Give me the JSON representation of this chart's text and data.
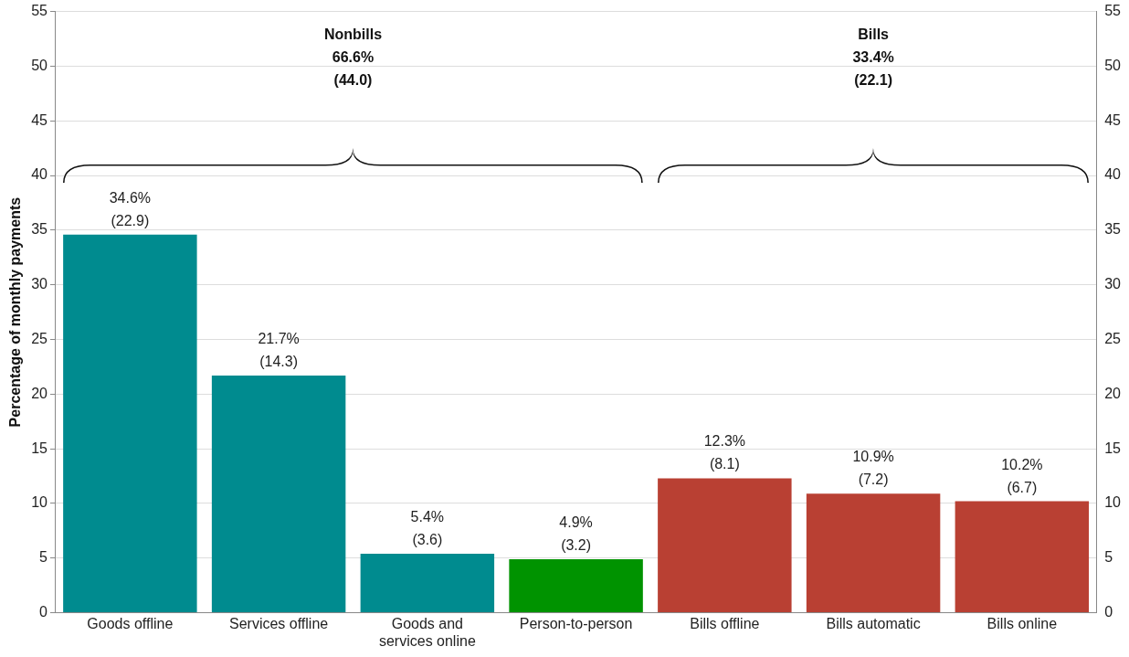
{
  "chart_data": {
    "type": "bar",
    "ylabel": "Percentage of monthly payments",
    "categories": [
      "Goods offline",
      "Services offline",
      "Goods and services online",
      "Person-to-person",
      "Bills offline",
      "Bills automatic",
      "Bills online"
    ],
    "values": [
      34.6,
      21.7,
      5.4,
      4.9,
      12.3,
      10.9,
      10.2
    ],
    "colors": [
      "#008b8f",
      "#008b8f",
      "#008b8f",
      "#009300",
      "#b94033",
      "#b94033",
      "#b94033"
    ],
    "value_labels": [
      "34.6%\n(22.9)",
      "21.7%\n(14.3)",
      "5.4%\n(3.6)",
      "4.9%\n(3.2)",
      "12.3%\n(8.1)",
      "10.9%\n(7.2)",
      "10.2%\n(6.7)"
    ],
    "ylim": [
      0,
      55
    ],
    "yticks": [
      0,
      5,
      10,
      15,
      20,
      25,
      30,
      35,
      40,
      45,
      50,
      55
    ],
    "y2lim": [
      0,
      55
    ],
    "y2ticks": [
      0,
      5,
      10,
      15,
      20,
      25,
      30,
      35,
      40,
      45,
      50,
      55
    ],
    "grid": "y",
    "legend": false,
    "annotations": [
      "Nonbills\n66.6%\n(44.0)",
      "Bills\n33.4%\n(22.1)"
    ]
  }
}
